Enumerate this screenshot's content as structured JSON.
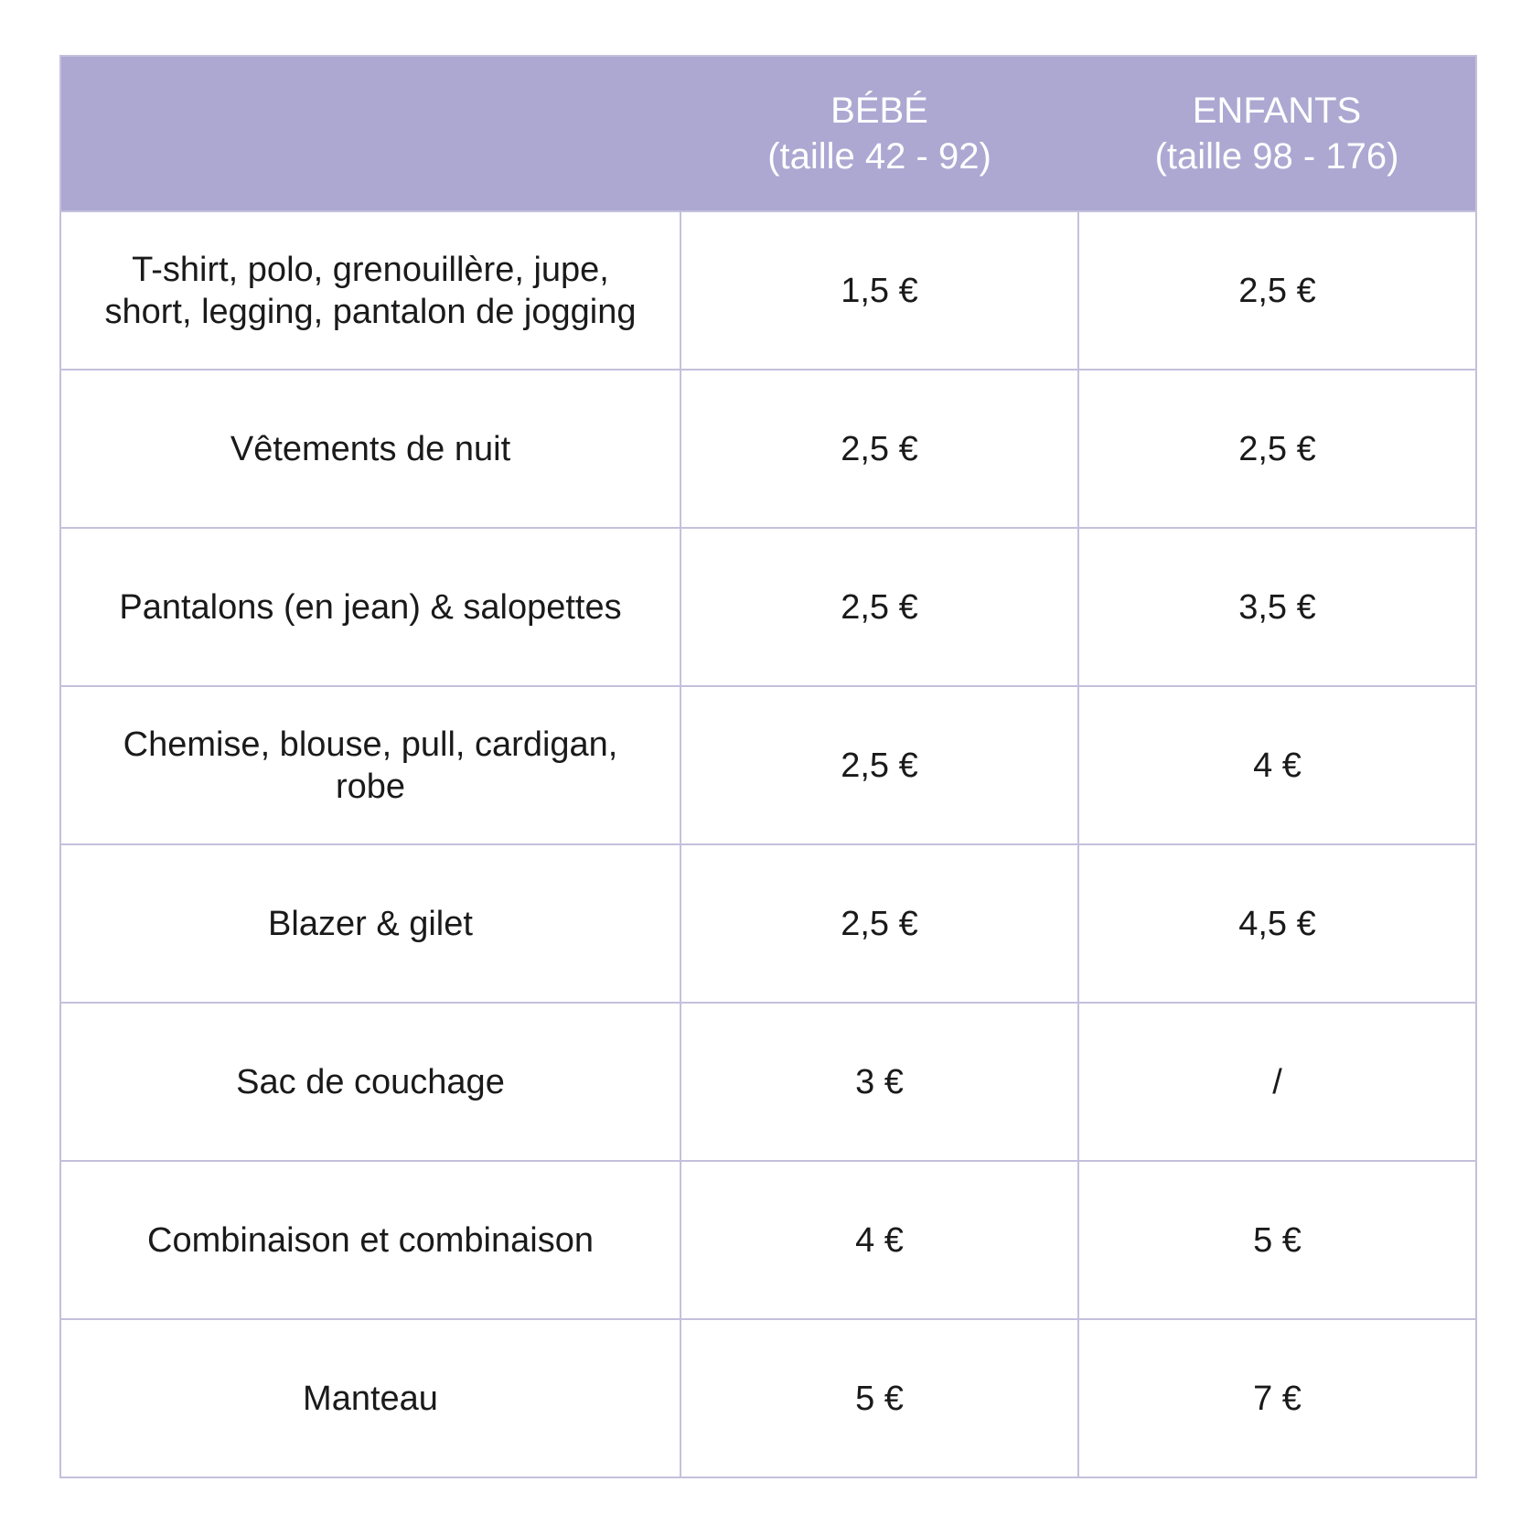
{
  "colors": {
    "header_bg": "#aca8d2",
    "header_text": "#ffffff",
    "border": "#c4c0dc",
    "text": "#1a1a1a"
  },
  "table": {
    "headers": [
      {
        "line1": "",
        "line2": ""
      },
      {
        "line1": "BÉBÉ",
        "line2": "(taille 42 - 92)"
      },
      {
        "line1": "ENFANTS",
        "line2": "(taille 98 - 176)"
      }
    ],
    "rows": [
      {
        "item": "T-shirt, polo, grenouillère, jupe, short, legging, pantalon de jogging",
        "bebe": "1,5 €",
        "enfants": "2,5 €"
      },
      {
        "item": "Vêtements de nuit",
        "bebe": "2,5 €",
        "enfants": "2,5 €"
      },
      {
        "item": "Pantalons (en jean) & salopettes",
        "bebe": "2,5 €",
        "enfants": "3,5 €"
      },
      {
        "item": "Chemise, blouse, pull, cardigan, robe",
        "bebe": "2,5 €",
        "enfants": "4 €"
      },
      {
        "item": "Blazer & gilet",
        "bebe": "2,5 €",
        "enfants": "4,5 €"
      },
      {
        "item": "Sac de couchage",
        "bebe": "3 €",
        "enfants": "/"
      },
      {
        "item": "Combinaison et combinaison",
        "bebe": "4 €",
        "enfants": "5 €"
      },
      {
        "item": "Manteau",
        "bebe": "5 €",
        "enfants": "7 €"
      }
    ]
  }
}
